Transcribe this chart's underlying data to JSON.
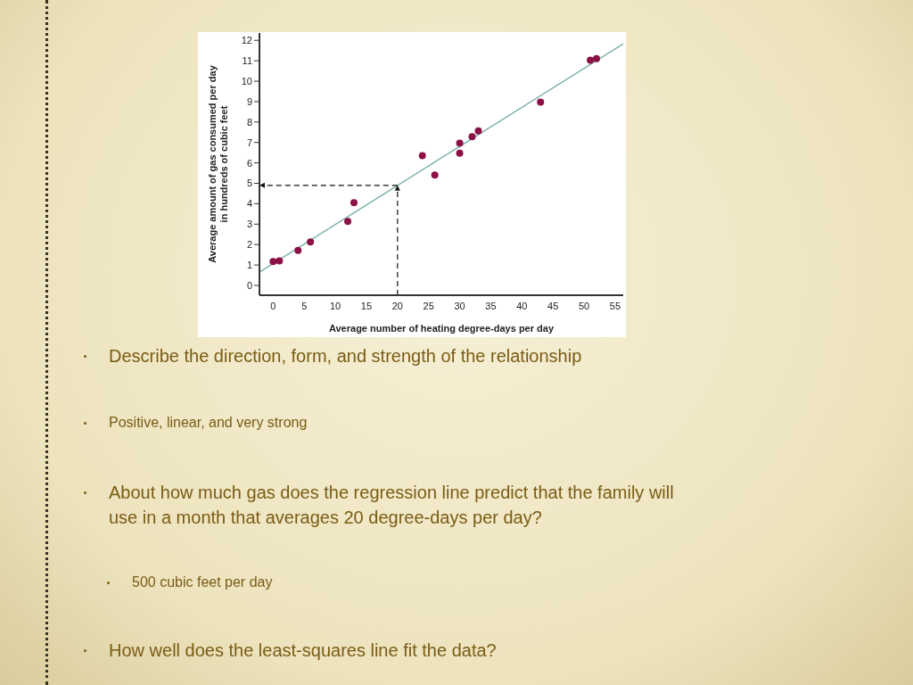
{
  "chart_data": {
    "type": "scatter",
    "xlabel": "Average number of heating degree-days per day",
    "ylabel": "Average amount of gas consumed per day\nin hundreds of cubic feet",
    "xlim": [
      -2.2,
      56.3
    ],
    "xticks": [
      0,
      5,
      10,
      15,
      20,
      25,
      30,
      35,
      40,
      45,
      50,
      55
    ],
    "ylim": [
      -0.48,
      12.36
    ],
    "yticks": [
      0,
      1,
      2,
      3,
      4,
      5,
      6,
      7,
      8,
      9,
      10,
      11,
      12
    ],
    "series": [
      {
        "marker": "circle",
        "color": "#8b1146",
        "x": [
          0,
          1,
          4,
          6,
          12,
          13,
          24,
          26,
          30,
          30,
          32,
          33,
          43,
          51,
          52
        ],
        "values": [
          1.17,
          1.2,
          1.72,
          2.13,
          3.13,
          4.05,
          6.35,
          5.4,
          6.97,
          6.47,
          7.28,
          7.57,
          8.98,
          11.03,
          11.1
        ]
      },
      {
        "type": "line",
        "color": "#7fb3ae",
        "x": [
          -2.2,
          56.3
        ],
        "values": [
          0.65,
          11.83
        ]
      }
    ],
    "ref_lines": [
      {
        "axis": "x",
        "value": 20,
        "color": "#111111",
        "line_style": "dashed"
      },
      {
        "axis": "y",
        "value": 4.9,
        "color": "#111111",
        "line_style": "dashed"
      }
    ],
    "annotations": [
      "Describe the direction, form, and strength of the relationship",
      "Positive, linear, and very strong",
      "About how much gas does the regression line predict that the family will use in a month that averages 20 degree-days per day?",
      "500 cubic feet per day",
      "How well does the least-squares line fit the data?"
    ]
  }
}
